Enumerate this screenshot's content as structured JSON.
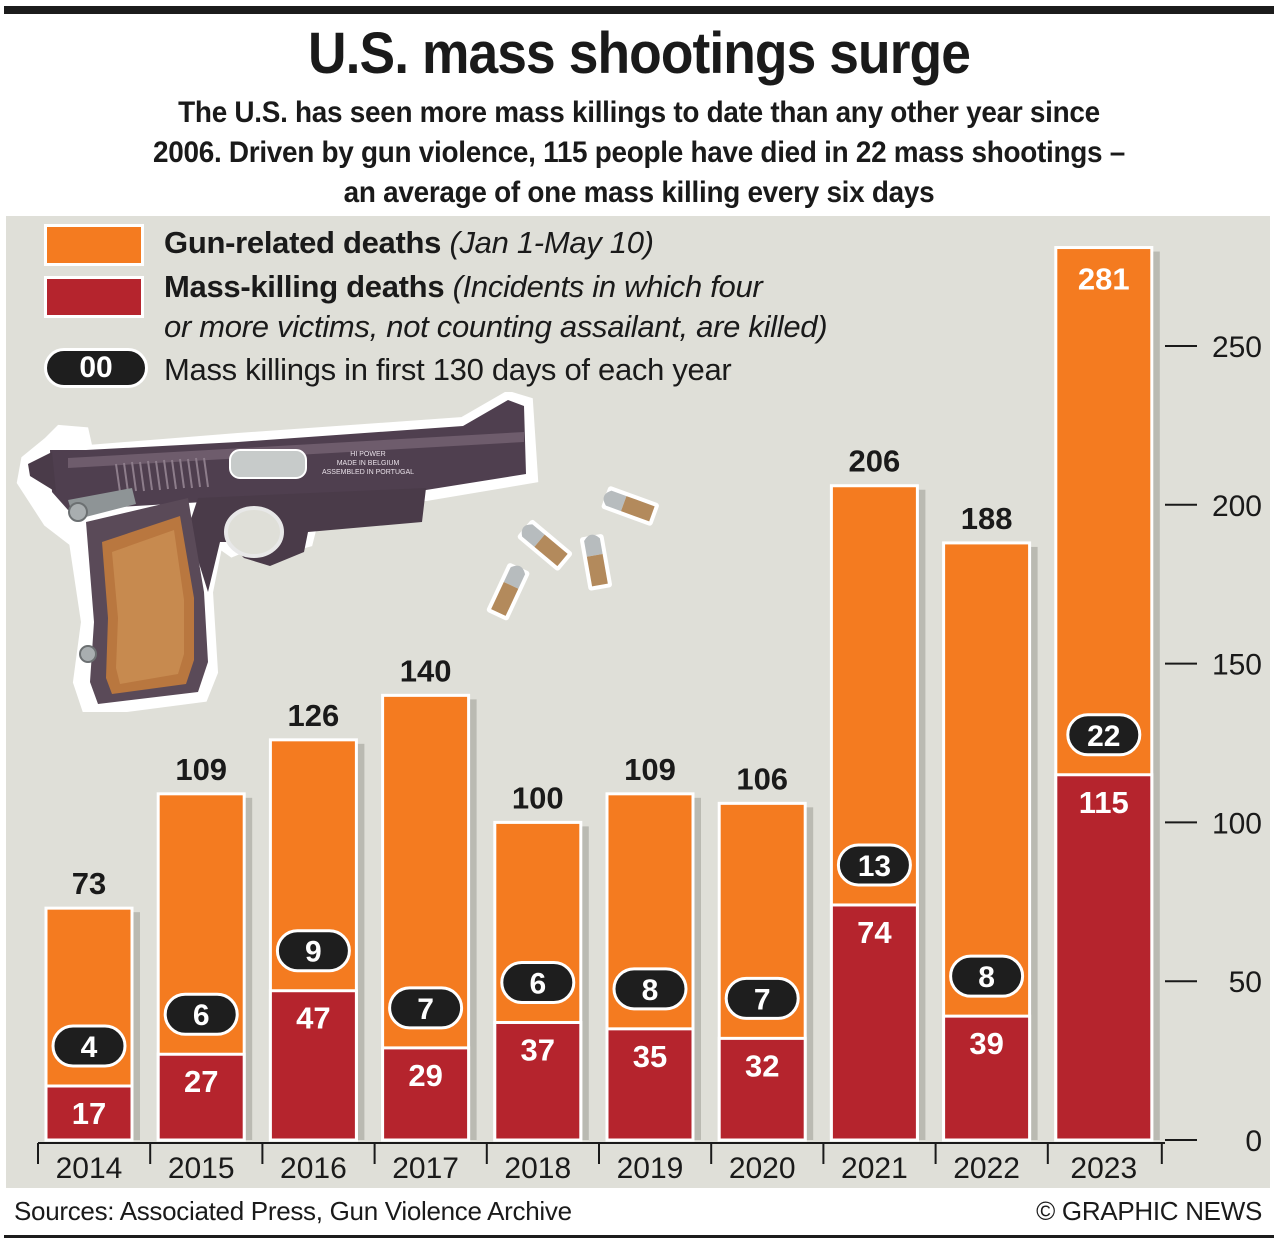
{
  "header": {
    "title": "U.S. mass shootings surge",
    "subtitle_lines": [
      "The U.S. has seen more mass killings to date than any other year since",
      "2006. Driven by gun violence, 115 people have died in 22 mass shootings –",
      "an average of one mass killing every six days"
    ]
  },
  "legend": {
    "gun_deaths_label": "Gun-related deaths",
    "gun_deaths_note": "(Jan 1-May 10)",
    "mass_killing_label": "Mass-killing deaths",
    "mass_killing_note_1": "(Incidents in which four",
    "mass_killing_note_2": "or more victims, not counting assailant, are killed)",
    "pill_sample": "00",
    "pill_label": "Mass killings in first 130 days of each year"
  },
  "illustration": {
    "gun_engraving": [
      "HI POWER",
      "MADE IN BELGIUM",
      "ASSEMBLED IN PORTUGAL"
    ]
  },
  "colors": {
    "gun_related": "#f47b20",
    "mass_killing": "#b5242d",
    "pill": "#1e1e1e",
    "panel_bg": "#dfdfd8"
  },
  "chart_data": {
    "type": "bar",
    "title": "U.S. mass shootings surge",
    "categories": [
      "2014",
      "2015",
      "2016",
      "2017",
      "2018",
      "2019",
      "2020",
      "2021",
      "2022",
      "2023"
    ],
    "series": [
      {
        "name": "Gun-related deaths (Jan 1-May 10)",
        "values": [
          73,
          109,
          126,
          140,
          100,
          109,
          106,
          206,
          188,
          281
        ]
      },
      {
        "name": "Mass-killing deaths",
        "values": [
          17,
          27,
          47,
          29,
          37,
          35,
          32,
          74,
          39,
          115
        ]
      },
      {
        "name": "Mass killings in first 130 days of each year",
        "values": [
          4,
          6,
          9,
          7,
          6,
          8,
          7,
          13,
          8,
          22
        ]
      }
    ],
    "y_ticks": [
      0,
      50,
      100,
      150,
      200,
      250
    ],
    "ylim": [
      0,
      281
    ],
    "axis_side": "right",
    "grid": false,
    "legend_position": "top-left",
    "xlabel": "",
    "ylabel": ""
  },
  "footer": {
    "sources": "Sources: Associated Press, Gun Violence Archive",
    "credit": "© GRAPHIC NEWS"
  }
}
